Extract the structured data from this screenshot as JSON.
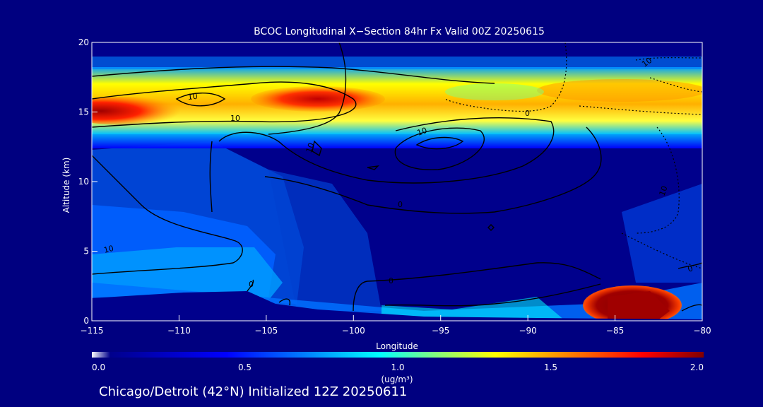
{
  "chart_data": {
    "type": "heatmap",
    "title": "BCOC Longitudinal X−Section 84hr  Fx Valid 00Z 20250615",
    "xlabel": "Longitude",
    "ylabel": "Altitude (km)",
    "xlim": [
      -115,
      -80
    ],
    "ylim": [
      0,
      20
    ],
    "x_ticks": [
      -115,
      -110,
      -105,
      -100,
      -95,
      -90,
      -85,
      -80
    ],
    "x_tick_labels": [
      "−115",
      "−110",
      "−105",
      "−100",
      "−95",
      "−90",
      "−85",
      "−80"
    ],
    "y_ticks": [
      0,
      5,
      10,
      15,
      20
    ],
    "y_tick_labels": [
      "0",
      "5",
      "10",
      "15",
      "20"
    ],
    "colorbar": {
      "label": "(ug/m³)",
      "range": [
        0.0,
        2.0
      ],
      "ticks": [
        0.0,
        0.5,
        1.0,
        1.5,
        2.0
      ],
      "tick_labels": [
        "0.0",
        "0.5",
        "1.0",
        "1.5",
        "2.0"
      ],
      "colors": [
        "#ffffff",
        "#00008c",
        "#0000ff",
        "#0080ff",
        "#00ffff",
        "#80ff80",
        "#ffff00",
        "#ff8000",
        "#ff0000",
        "#800000"
      ]
    },
    "contour_labels": [
      "10",
      "10",
      "10",
      "10",
      "0",
      "0",
      "0",
      "0",
      "10",
      "10",
      "10",
      "0"
    ],
    "grid": false,
    "footer": "Chicago/Detroit (42°N) Initialized 12Z 20250611"
  }
}
